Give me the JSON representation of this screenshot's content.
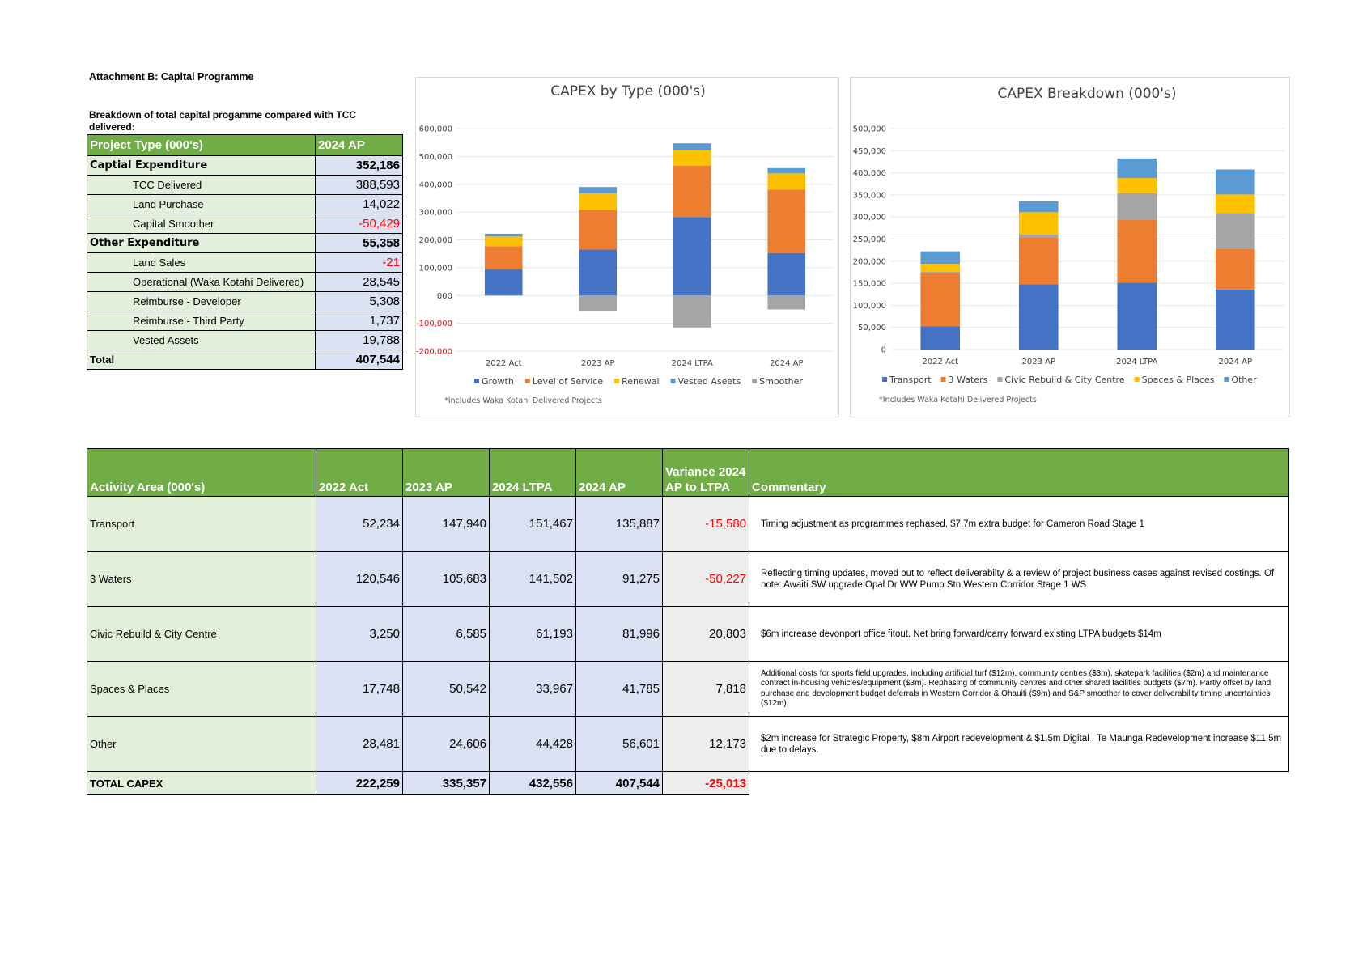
{
  "page": {
    "title": "Attachment B: Capital Programme",
    "summary_caption": "Breakdown of total capital progamme compared with TCC delivered:"
  },
  "summary_table": {
    "header": [
      "Project Type (000's)",
      "2024 AP"
    ],
    "rows": [
      {
        "label": "Captial Expenditure",
        "value": "352,186"
      },
      {
        "label": "TCC Delivered",
        "value": "388,593"
      },
      {
        "label": "Land Purchase",
        "value": "14,022"
      },
      {
        "label": "Capital Smoother",
        "value": "-50,429"
      },
      {
        "label": "Other Expenditure",
        "value": "55,358"
      },
      {
        "label": "Land Sales",
        "value": "-21"
      },
      {
        "label": "Operational (Waka Kotahi Delivered)",
        "value": "28,545"
      },
      {
        "label": "Reimburse - Developer",
        "value": "5,308"
      },
      {
        "label": "Reimburse - Third Party",
        "value": "1,737"
      },
      {
        "label": "Vested Assets",
        "value": "19,788"
      },
      {
        "label": "Total",
        "value": "407,544"
      }
    ]
  },
  "chart_data": [
    {
      "type": "bar",
      "stacked": true,
      "title": "CAPEX by Type (000's)",
      "categories": [
        "2022 Act",
        "2023 AP",
        "2024 LTPA",
        "2024 AP"
      ],
      "ylim": [
        -200000,
        600000
      ],
      "yticks": [
        "-200,000",
        "-100,000",
        "000",
        "100,000",
        "200,000",
        "300,000",
        "400,000",
        "500,000",
        "600,000"
      ],
      "grid": true,
      "legend_position": "bottom",
      "series": [
        {
          "name": "Growth",
          "color": "#4472c4",
          "values": [
            95000,
            165000,
            282000,
            153000
          ]
        },
        {
          "name": "Level of Service",
          "color": "#ed7d31",
          "values": [
            82000,
            143000,
            185000,
            228000
          ]
        },
        {
          "name": "Renewal",
          "color": "#ffc000",
          "values": [
            35000,
            60000,
            55000,
            58000
          ]
        },
        {
          "name": "Vested Aseets",
          "color": "#5b9bd5",
          "values": [
            10000,
            22000,
            25000,
            19000
          ]
        },
        {
          "name": "Smoother",
          "color": "#a5a5a5",
          "values": [
            0,
            -55000,
            -115000,
            -50000
          ]
        }
      ],
      "note": "*Includes Waka Kotahi Delivered Projects"
    },
    {
      "type": "bar",
      "stacked": true,
      "title": "CAPEX Breakdown (000's)",
      "categories": [
        "2022 Act",
        "2023 AP",
        "2024 LTPA",
        "2024 AP"
      ],
      "ylim": [
        0,
        500000
      ],
      "yticks": [
        "0",
        "50,000",
        "100,000",
        "150,000",
        "200,000",
        "250,000",
        "300,000",
        "350,000",
        "400,000",
        "450,000",
        "500,000"
      ],
      "grid": true,
      "legend_position": "bottom",
      "series": [
        {
          "name": "Transport",
          "color": "#4472c4",
          "values": [
            52234,
            147940,
            151467,
            135887
          ]
        },
        {
          "name": "3 Waters",
          "color": "#ed7d31",
          "values": [
            120546,
            105683,
            141502,
            91275
          ]
        },
        {
          "name": "Civic Rebuild & City Centre",
          "color": "#a5a5a5",
          "values": [
            3250,
            6585,
            61193,
            81996
          ]
        },
        {
          "name": "Spaces & Places",
          "color": "#ffc000",
          "values": [
            17748,
            50542,
            33967,
            41785
          ]
        },
        {
          "name": "Other",
          "color": "#5b9bd5",
          "values": [
            28481,
            24606,
            44428,
            56601
          ]
        }
      ],
      "note": "*Includes Waka Kotahi Delivered Projects"
    }
  ],
  "activity_table": {
    "header": [
      "Activity Area (000's)",
      "2022 Act",
      "2023 AP",
      "2024 LTPA",
      "2024 AP",
      "Variance 2024 AP to LTPA",
      "Commentary"
    ],
    "rows": [
      {
        "area": "Transport",
        "act2022": "52,234",
        "ap2023": "147,940",
        "ltpa2024": "151,467",
        "ap2024": "135,887",
        "variance": "-15,580",
        "commentary": "Timing adjustment as programmes rephased, $7.7m extra budget for Cameron Road  Stage 1"
      },
      {
        "area": "3 Waters",
        "act2022": "120,546",
        "ap2023": "105,683",
        "ltpa2024": "141,502",
        "ap2024": "91,275",
        "variance": "-50,227",
        "commentary": "Reflecting timing updates, moved out to reflect deliverabilty & a review of project business cases against revised costings. Of note: Awaiti SW upgrade;Opal Dr WW Pump Stn;Western Corridor Stage 1 WS"
      },
      {
        "area": "Civic Rebuild & City Centre",
        "act2022": "3,250",
        "ap2023": "6,585",
        "ltpa2024": "61,193",
        "ap2024": "81,996",
        "variance": "20,803",
        "commentary": "$6m increase devonport office fitout. Net bring forward/carry forward existing LTPA budgets $14m"
      },
      {
        "area": "Spaces & Places",
        "act2022": "17,748",
        "ap2023": "50,542",
        "ltpa2024": "33,967",
        "ap2024": "41,785",
        "variance": "7,818",
        "commentary": "Additional costs for sports field upgrades, including artificial turf ($12m), community centres ($3m), skatepark facilities ($2m) and maintenance contract in-housing vehicles/equipment ($3m). Rephasing of community centres and other shared facilities budgets ($7m). Partly offset by land purchase and development budget deferrals in Western Corridor & Ohauiti ($9m) and S&P smoother to cover deliverability timing uncertainties ($12m)."
      },
      {
        "area": "Other",
        "act2022": "28,481",
        "ap2023": "24,606",
        "ltpa2024": "44,428",
        "ap2024": "56,601",
        "variance": "12,173",
        "commentary": "$2m increase for Strategic Property, $8m Airport redevelopment & $1.5m Digital .    Te Maunga Redevelopment increase $11.5m due to delays."
      }
    ],
    "total": {
      "area": "TOTAL CAPEX",
      "act2022": "222,259",
      "ap2023": "335,357",
      "ltpa2024": "432,556",
      "ap2024": "407,544",
      "variance": "-25,013"
    }
  }
}
